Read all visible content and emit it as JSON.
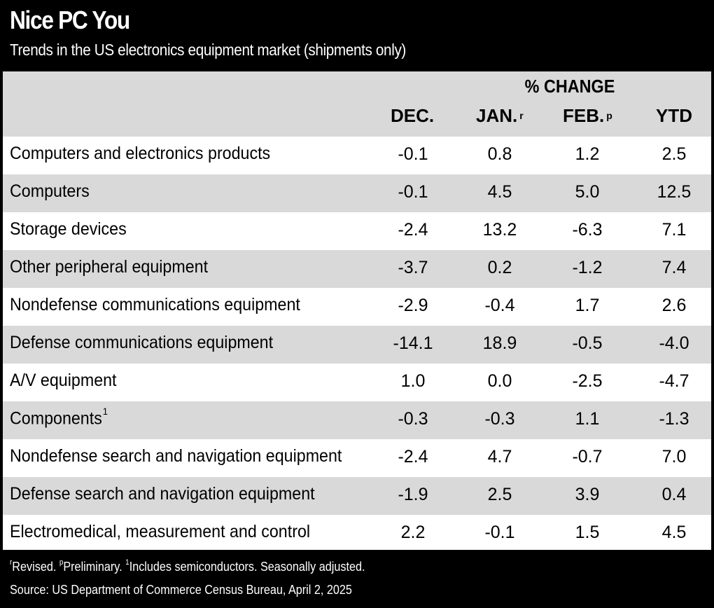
{
  "title": "Nice PC You",
  "subtitle": "Trends in the US electronics equipment market (shipments only)",
  "chart_data": {
    "type": "table",
    "group_header": "% CHANGE",
    "columns": [
      {
        "label": "DEC.",
        "mark": ""
      },
      {
        "label": "JAN.",
        "mark": "r"
      },
      {
        "label": "FEB.",
        "mark": "p"
      },
      {
        "label": "YTD",
        "mark": ""
      }
    ],
    "rows": [
      {
        "label": "Computers and electronics products",
        "mark": "",
        "values": [
          "-0.1",
          "0.8",
          "1.2",
          "2.5"
        ]
      },
      {
        "label": "Computers",
        "mark": "",
        "values": [
          "-0.1",
          "4.5",
          "5.0",
          "12.5"
        ]
      },
      {
        "label": "Storage devices",
        "mark": "",
        "values": [
          "-2.4",
          "13.2",
          "-6.3",
          "7.1"
        ]
      },
      {
        "label": "Other peripheral equipment",
        "mark": "",
        "values": [
          "-3.7",
          "0.2",
          "-1.2",
          "7.4"
        ]
      },
      {
        "label": "Nondefense communications equipment",
        "mark": "",
        "values": [
          "-2.9",
          "-0.4",
          "1.7",
          "2.6"
        ]
      },
      {
        "label": "Defense communications equipment",
        "mark": "",
        "values": [
          "-14.1",
          "18.9",
          "-0.5",
          "-4.0"
        ]
      },
      {
        "label": "A/V equipment",
        "mark": "",
        "values": [
          "1.0",
          "0.0",
          "-2.5",
          "-4.7"
        ]
      },
      {
        "label": "Components",
        "mark": "1",
        "values": [
          "-0.3",
          "-0.3",
          "1.1",
          "-1.3"
        ]
      },
      {
        "label": "Nondefense search and navigation equipment",
        "mark": "",
        "values": [
          "-2.4",
          "4.7",
          "-0.7",
          "7.0"
        ]
      },
      {
        "label": "Defense search and navigation equipment",
        "mark": "",
        "values": [
          "-1.9",
          "2.5",
          "3.9",
          "0.4"
        ]
      },
      {
        "label": "Electromedical, measurement and control",
        "mark": "",
        "values": [
          "2.2",
          "-0.1",
          "1.5",
          "4.5"
        ]
      }
    ]
  },
  "footnote": {
    "r_mark": "r",
    "r_text": "Revised. ",
    "p_mark": "p",
    "p_text": "Preliminary. ",
    "one_mark": "1",
    "one_text": "Includes semiconductors. Seasonally adjusted."
  },
  "source": "Source: US Department of Commerce Census Bureau, April 2, 2025",
  "colors": {
    "background": "#000000",
    "table_background": "#ffffff",
    "shaded_row": "#d9d9d9",
    "text_dark": "#000000",
    "text_light": "#ffffff"
  }
}
